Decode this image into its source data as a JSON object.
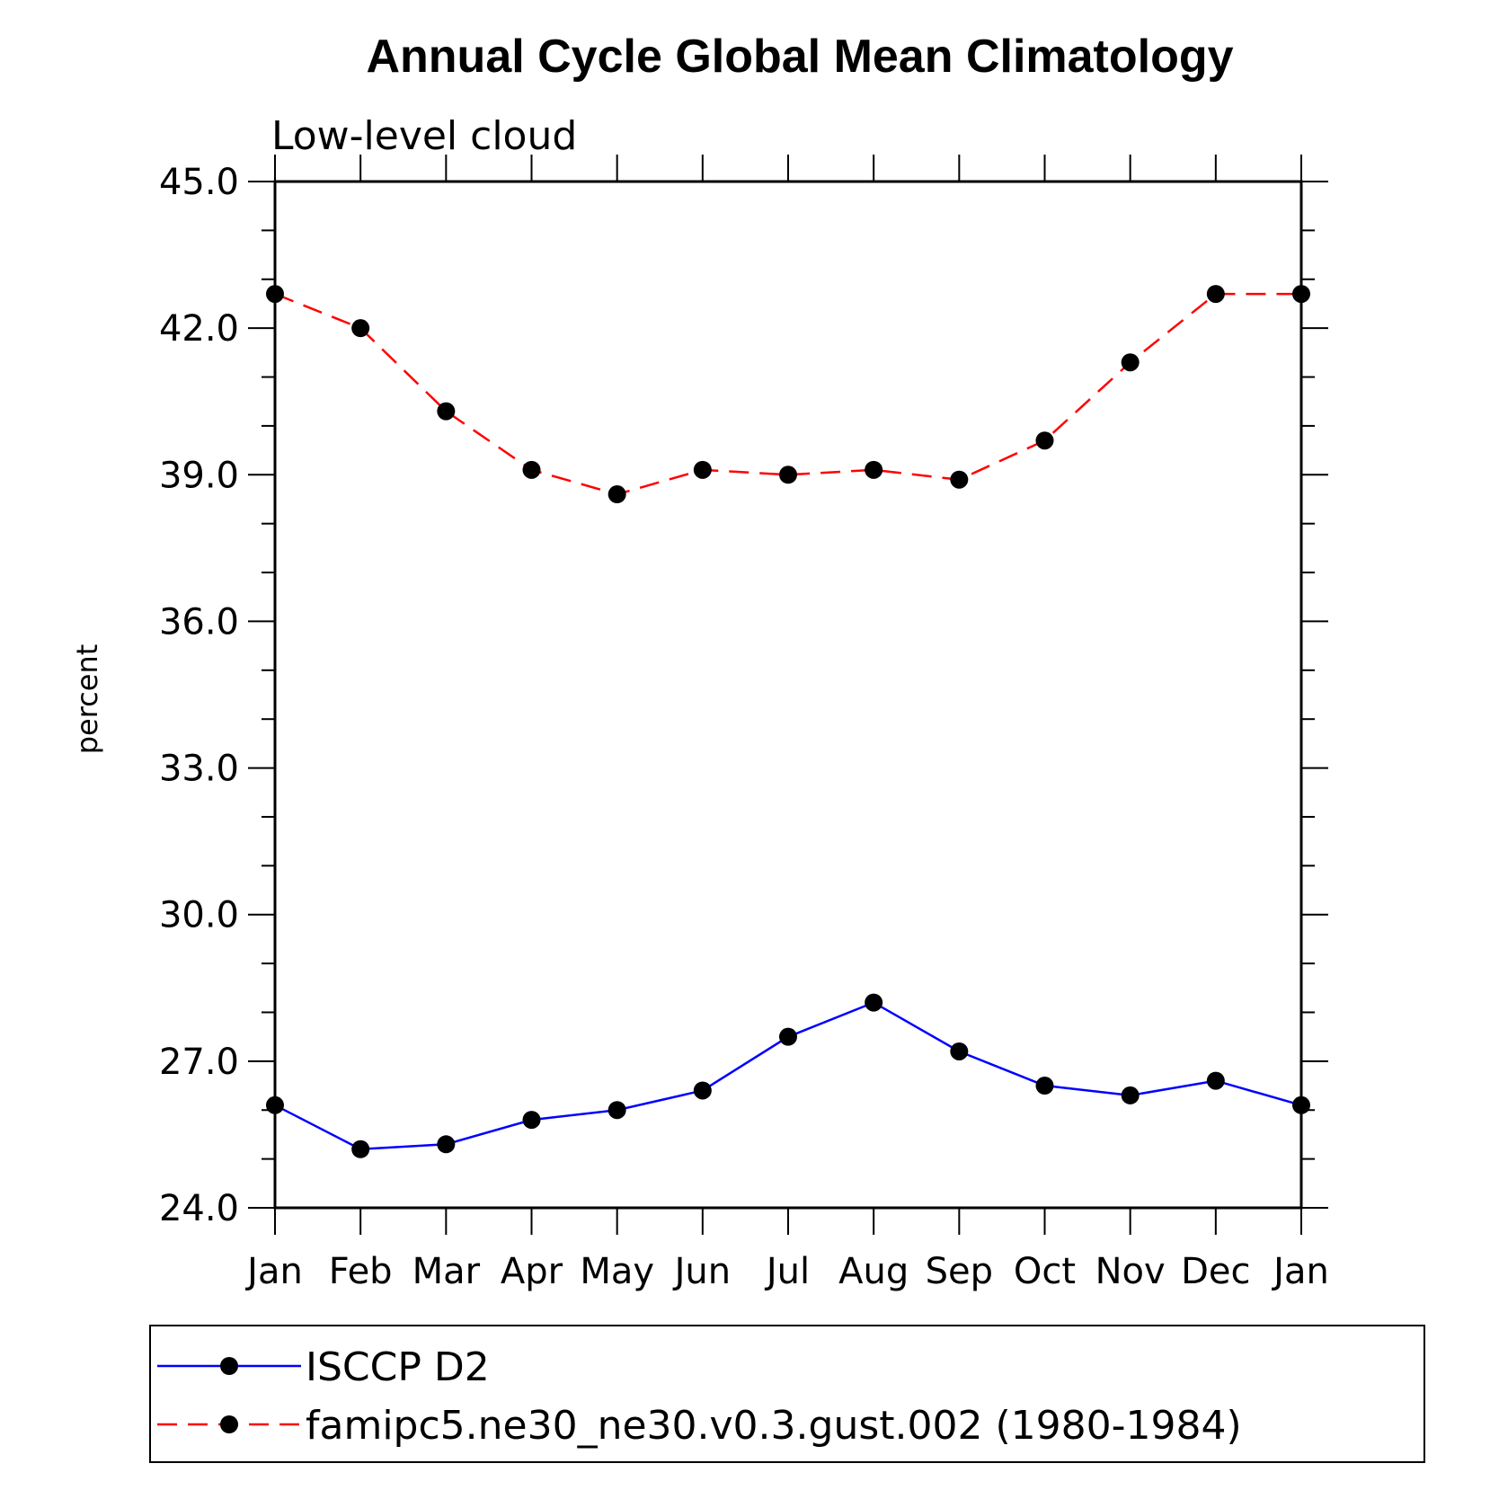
{
  "chart_data": {
    "type": "line",
    "title": "Annual Cycle Global Mean Climatology",
    "subtitle": "Low-level cloud",
    "xlabel": "",
    "ylabel": "percent",
    "categories": [
      "Jan",
      "Feb",
      "Mar",
      "Apr",
      "May",
      "Jun",
      "Jul",
      "Aug",
      "Sep",
      "Oct",
      "Nov",
      "Dec",
      "Jan"
    ],
    "ylim": [
      24.0,
      45.0
    ],
    "yticks": [
      "24.0",
      "27.0",
      "30.0",
      "33.0",
      "36.0",
      "39.0",
      "42.0",
      "45.0"
    ],
    "grid": false,
    "legend_position": "bottom",
    "series": [
      {
        "name": "ISCCP D2",
        "color": "#0000ff",
        "dash": "solid",
        "marker": "filled-circle",
        "values": [
          26.1,
          25.2,
          25.3,
          25.8,
          26.0,
          26.4,
          27.5,
          28.2,
          27.2,
          26.5,
          26.3,
          26.6,
          26.1
        ]
      },
      {
        "name": "famipc5.ne30_ne30.v0.3.gust.002 (1980-1984)",
        "color": "#ff0000",
        "dash": "dashed",
        "marker": "filled-circle",
        "values": [
          42.7,
          42.0,
          40.3,
          39.1,
          38.6,
          39.1,
          39.0,
          39.1,
          38.9,
          39.7,
          41.3,
          42.7,
          42.7
        ]
      }
    ]
  }
}
